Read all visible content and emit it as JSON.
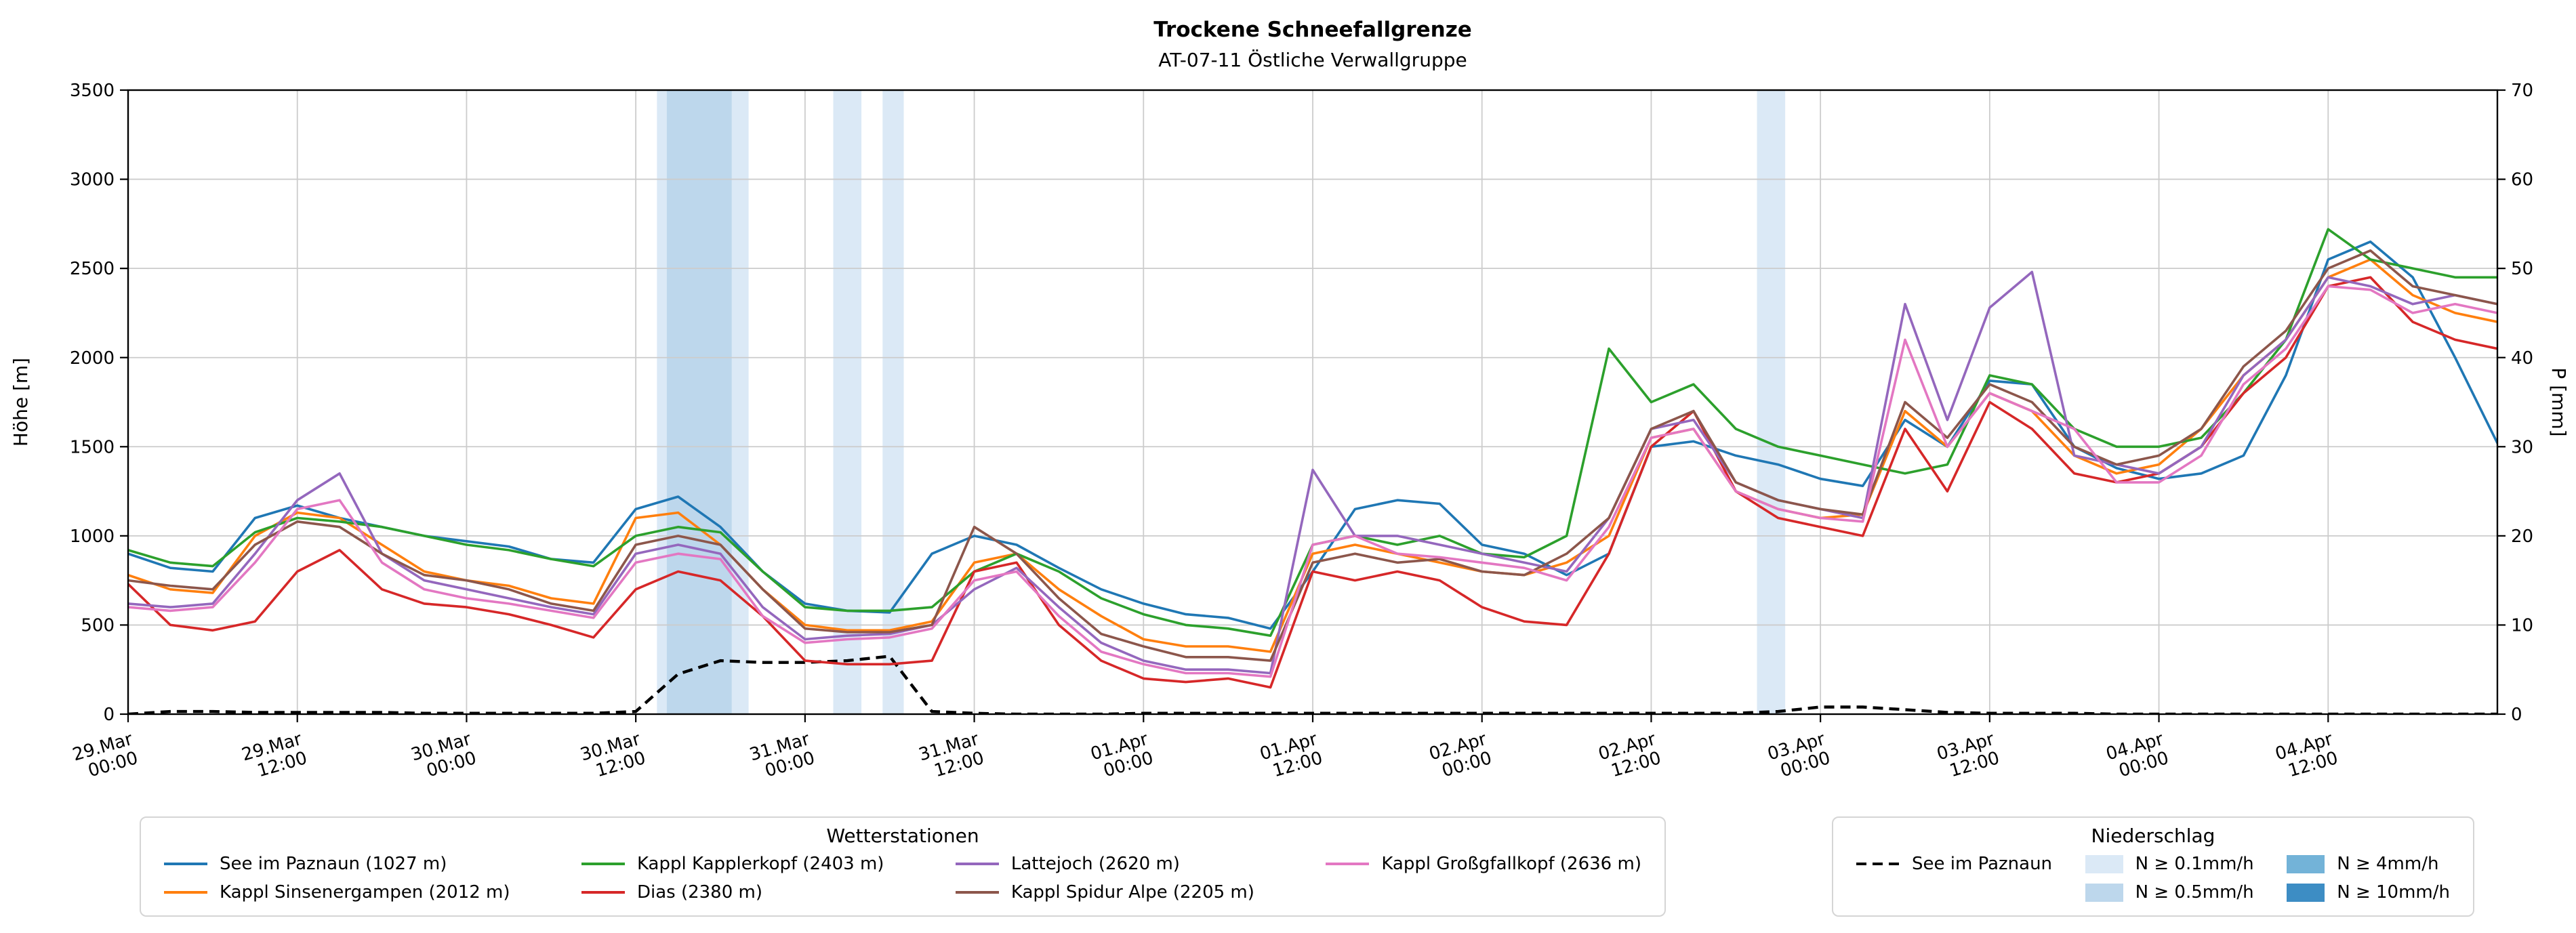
{
  "chart_data": {
    "type": "line",
    "title": "Trockene Schneefallgrenze",
    "subtitle": "AT-07-11 Östliche Verwallgruppe",
    "ylabel_left": "Höhe [m]",
    "ylabel_right": "P [mm]",
    "ylim_left": [
      0,
      3500
    ],
    "ylim_right": [
      0,
      70
    ],
    "y_ticks_left": [
      0,
      500,
      1000,
      1500,
      2000,
      2500,
      3000,
      3500
    ],
    "y_ticks_right": [
      0,
      10,
      20,
      30,
      40,
      50,
      60,
      70
    ],
    "xlim_hours": [
      0,
      168
    ],
    "x_step_hours": 3,
    "grid_color": "#cccccc",
    "x_ticks": [
      {
        "hour": 0,
        "date": "29.Mar",
        "time": "00:00"
      },
      {
        "hour": 12,
        "date": "29.Mar",
        "time": "12:00"
      },
      {
        "hour": 24,
        "date": "30.Mar",
        "time": "00:00"
      },
      {
        "hour": 36,
        "date": "30.Mar",
        "time": "12:00"
      },
      {
        "hour": 48,
        "date": "31.Mar",
        "time": "00:00"
      },
      {
        "hour": 60,
        "date": "31.Mar",
        "time": "12:00"
      },
      {
        "hour": 72,
        "date": "01.Apr",
        "time": "00:00"
      },
      {
        "hour": 84,
        "date": "01.Apr",
        "time": "12:00"
      },
      {
        "hour": 96,
        "date": "02.Apr",
        "time": "00:00"
      },
      {
        "hour": 108,
        "date": "02.Apr",
        "time": "12:00"
      },
      {
        "hour": 120,
        "date": "03.Apr",
        "time": "00:00"
      },
      {
        "hour": 132,
        "date": "03.Apr",
        "time": "12:00"
      },
      {
        "hour": 144,
        "date": "04.Apr",
        "time": "00:00"
      },
      {
        "hour": 156,
        "date": "04.Apr",
        "time": "12:00"
      }
    ],
    "series": [
      {
        "name": "See im Paznaun (1027 m)",
        "color": "#1f77b4",
        "values": [
          900,
          820,
          800,
          1100,
          1170,
          1100,
          1050,
          1000,
          970,
          940,
          870,
          850,
          1150,
          1220,
          1050,
          800,
          620,
          580,
          570,
          900,
          1000,
          950,
          820,
          700,
          620,
          560,
          540,
          480,
          800,
          1150,
          1200,
          1180,
          950,
          900,
          780,
          900,
          1500,
          1530,
          1450,
          1400,
          1320,
          1280,
          1650,
          1500,
          1870,
          1850,
          1500,
          1380,
          1320,
          1350,
          1450,
          1900,
          2550,
          2650,
          2450,
          2000,
          1520
        ]
      },
      {
        "name": "Kappl Sinsenergampen (2012 m)",
        "color": "#ff7f0e",
        "values": [
          780,
          700,
          680,
          1000,
          1130,
          1100,
          950,
          800,
          750,
          720,
          650,
          620,
          1100,
          1130,
          950,
          700,
          500,
          470,
          470,
          520,
          850,
          900,
          700,
          550,
          420,
          380,
          380,
          350,
          900,
          950,
          900,
          850,
          800,
          780,
          850,
          1000,
          1550,
          1600,
          1250,
          1150,
          1100,
          1120,
          1700,
          1500,
          1800,
          1700,
          1450,
          1350,
          1400,
          1600,
          1900,
          2100,
          2450,
          2550,
          2350,
          2250,
          2200
        ]
      },
      {
        "name": "Kappl Kapplerkopf (2403 m)",
        "color": "#2ca02c",
        "values": [
          920,
          850,
          830,
          1020,
          1100,
          1080,
          1050,
          1000,
          950,
          920,
          870,
          830,
          1000,
          1050,
          1020,
          800,
          600,
          580,
          580,
          600,
          800,
          900,
          800,
          650,
          560,
          500,
          480,
          440,
          950,
          1000,
          950,
          1000,
          900,
          880,
          1000,
          2050,
          1750,
          1850,
          1600,
          1500,
          1450,
          1400,
          1350,
          1400,
          1900,
          1850,
          1600,
          1500,
          1500,
          1550,
          1800,
          2100,
          2720,
          2550,
          2500,
          2450,
          2450
        ]
      },
      {
        "name": "Dias (2380 m)",
        "color": "#d62728",
        "values": [
          730,
          500,
          470,
          520,
          800,
          920,
          700,
          620,
          600,
          560,
          500,
          430,
          700,
          800,
          750,
          550,
          300,
          280,
          280,
          300,
          800,
          850,
          500,
          300,
          200,
          180,
          200,
          150,
          800,
          750,
          800,
          750,
          600,
          520,
          500,
          900,
          1500,
          1700,
          1250,
          1100,
          1050,
          1000,
          1600,
          1250,
          1750,
          1600,
          1350,
          1300,
          1350,
          1500,
          1800,
          2000,
          2400,
          2450,
          2200,
          2100,
          2050
        ]
      },
      {
        "name": "Lattejoch (2620 m)",
        "color": "#9467bd",
        "values": [
          620,
          600,
          620,
          900,
          1200,
          1350,
          900,
          750,
          700,
          650,
          600,
          560,
          900,
          950,
          900,
          600,
          420,
          440,
          450,
          500,
          700,
          820,
          600,
          400,
          300,
          250,
          250,
          230,
          1370,
          1000,
          1000,
          950,
          900,
          850,
          800,
          1100,
          1600,
          1650,
          1300,
          1200,
          1150,
          1100,
          2300,
          1650,
          2280,
          2480,
          1450,
          1400,
          1350,
          1500,
          1900,
          2100,
          2450,
          2400,
          2300,
          2350,
          2300
        ]
      },
      {
        "name": "Kappl Spidur Alpe (2205 m)",
        "color": "#8c564b",
        "values": [
          750,
          720,
          700,
          950,
          1080,
          1050,
          900,
          780,
          750,
          700,
          620,
          580,
          950,
          1000,
          950,
          700,
          480,
          460,
          460,
          500,
          1050,
          900,
          650,
          450,
          380,
          320,
          320,
          300,
          850,
          900,
          850,
          870,
          800,
          780,
          900,
          1100,
          1600,
          1700,
          1300,
          1200,
          1150,
          1120,
          1750,
          1550,
          1850,
          1750,
          1500,
          1400,
          1450,
          1600,
          1950,
          2150,
          2500,
          2600,
          2400,
          2350,
          2300
        ]
      },
      {
        "name": "Kappl Großgfallkopf (2636 m)",
        "color": "#e377c2",
        "values": [
          600,
          580,
          600,
          850,
          1150,
          1200,
          850,
          700,
          650,
          620,
          580,
          540,
          850,
          900,
          870,
          550,
          400,
          420,
          430,
          480,
          750,
          800,
          550,
          350,
          280,
          230,
          230,
          210,
          950,
          1000,
          900,
          880,
          850,
          820,
          750,
          1050,
          1550,
          1600,
          1250,
          1150,
          1100,
          1080,
          2100,
          1500,
          1800,
          1700,
          1600,
          1300,
          1300,
          1450,
          1850,
          2050,
          2400,
          2380,
          2250,
          2300,
          2250
        ]
      }
    ],
    "precipitation_line": {
      "name": "See im Paznaun",
      "color": "#000000",
      "dashed": true,
      "axis": "right",
      "values": [
        0,
        0.3,
        0.3,
        0.2,
        0.2,
        0.2,
        0.2,
        0.1,
        0.1,
        0.1,
        0.1,
        0.1,
        0.3,
        4.5,
        6,
        5.8,
        5.8,
        6,
        6.5,
        0.3,
        0.1,
        0,
        0,
        0,
        0.1,
        0.1,
        0.1,
        0.1,
        0.1,
        0.1,
        0.1,
        0.1,
        0.1,
        0.1,
        0.1,
        0.1,
        0.1,
        0.1,
        0.1,
        0.3,
        0.8,
        0.8,
        0.5,
        0.2,
        0.1,
        0.1,
        0.1,
        0,
        0,
        0,
        0,
        0,
        0,
        0,
        0,
        0,
        0
      ]
    },
    "precip_levels": [
      {
        "label": "N ≥ 0.1mm/h",
        "color": "#dbe9f6"
      },
      {
        "label": "N ≥ 0.5mm/h",
        "color": "#bdd7ec"
      },
      {
        "label": "N ≥ 4mm/h",
        "color": "#73b3d8"
      },
      {
        "label": "N ≥ 10mm/h",
        "color": "#3d8dc4"
      }
    ],
    "precip_bands": [
      {
        "from_hour": 37.5,
        "to_hour": 44,
        "level_index": 0
      },
      {
        "from_hour": 38.2,
        "to_hour": 42.8,
        "level_index": 1
      },
      {
        "from_hour": 50,
        "to_hour": 52,
        "level_index": 0
      },
      {
        "from_hour": 53.5,
        "to_hour": 55,
        "level_index": 0
      },
      {
        "from_hour": 115.5,
        "to_hour": 117.5,
        "level_index": 0
      }
    ]
  },
  "legend_stations": {
    "title": "Wetterstationen",
    "columns": [
      [
        0,
        1
      ],
      [
        2,
        3
      ],
      [
        4,
        5
      ],
      [
        6
      ]
    ]
  },
  "legend_precip": {
    "title": "Niederschlag",
    "line_label": "See im Paznaun",
    "level_columns": [
      [
        0,
        1
      ],
      [
        2,
        3
      ]
    ]
  }
}
